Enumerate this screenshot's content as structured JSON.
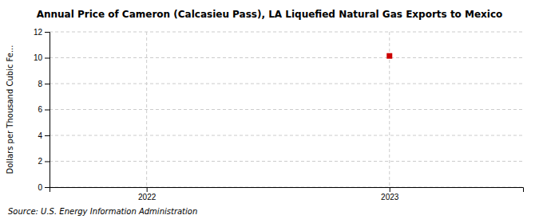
{
  "chart_data": {
    "type": "scatter",
    "title": "Annual Price of Cameron (Calcasieu Pass), LA Liquefied Natural Gas Exports to Mexico",
    "y_label": "Dollars per Thousand Cubic Fe...",
    "annotations": [
      "Source: U.S. Energy Information Administration"
    ],
    "x": [
      2023
    ],
    "values": [
      10.14
    ],
    "color": "#cc0000",
    "marker": "square",
    "xlim": [
      2021.6,
      2023.55
    ],
    "xticks": [
      2022,
      2023
    ],
    "ylim": [
      0,
      12
    ],
    "yticks": [
      0,
      2,
      4,
      6,
      8,
      10,
      12
    ],
    "grid": true
  }
}
